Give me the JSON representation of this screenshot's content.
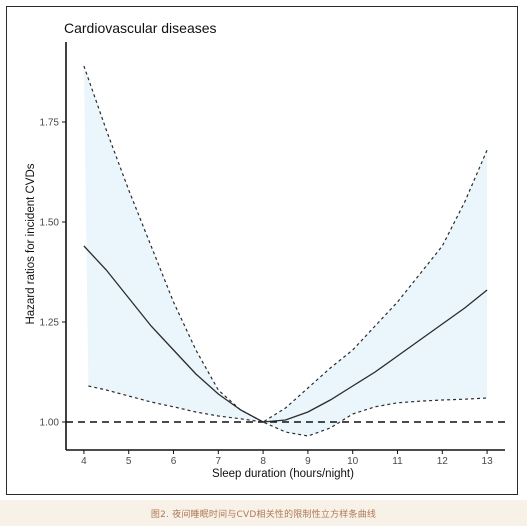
{
  "chart_data": {
    "type": "line",
    "title": "Cardiovascular diseases",
    "xlabel": "Sleep duration (hours/night)",
    "ylabel": "Hazard ratios for incident CVDs",
    "xlim": [
      3.6,
      13.4
    ],
    "ylim": [
      0.93,
      1.95
    ],
    "x_ticks": [
      4,
      5,
      6,
      7,
      8,
      9,
      10,
      11,
      12,
      13
    ],
    "y_ticks": [
      1.0,
      1.25,
      1.5,
      1.75
    ],
    "y_tick_labels": [
      "1.00",
      "1.25",
      "1.50",
      "1.75"
    ],
    "reference_line": 1.0,
    "series": [
      {
        "role": "estimate",
        "x": [
          4,
          4.5,
          5,
          5.5,
          6,
          6.5,
          7,
          7.5,
          8,
          8.5,
          9,
          9.5,
          10,
          10.5,
          11,
          11.5,
          12,
          12.5,
          13
        ],
        "y": [
          1.44,
          1.38,
          1.31,
          1.24,
          1.18,
          1.12,
          1.07,
          1.03,
          1.0,
          1.005,
          1.025,
          1.055,
          1.09,
          1.125,
          1.165,
          1.205,
          1.245,
          1.285,
          1.33
        ]
      },
      {
        "role": "upper",
        "x": [
          4,
          4.5,
          5,
          5.5,
          6,
          6.5,
          7,
          7.5,
          8,
          8.5,
          9,
          9.5,
          10,
          10.5,
          11,
          11.5,
          12,
          12.5,
          13
        ],
        "y": [
          1.89,
          1.73,
          1.58,
          1.44,
          1.3,
          1.18,
          1.08,
          1.03,
          1.0,
          1.035,
          1.085,
          1.135,
          1.18,
          1.24,
          1.3,
          1.37,
          1.44,
          1.55,
          1.68
        ]
      },
      {
        "role": "lower",
        "x": [
          4.1,
          4.5,
          5,
          5.5,
          6,
          6.5,
          7,
          7.5,
          8,
          8.5,
          9,
          9.5,
          10,
          10.5,
          11,
          11.5,
          12,
          12.5,
          13
        ],
        "y": [
          1.09,
          1.08,
          1.065,
          1.05,
          1.038,
          1.025,
          1.015,
          1.008,
          1.0,
          0.975,
          0.965,
          0.985,
          1.02,
          1.038,
          1.048,
          1.052,
          1.055,
          1.057,
          1.06
        ]
      }
    ],
    "colors": {
      "band": "#eaf6fc",
      "line": "#2b2b2b",
      "reference": "#111111"
    }
  },
  "caption": "图2. 夜间睡眠时间与CVD相关性的限制性立方样条曲线"
}
